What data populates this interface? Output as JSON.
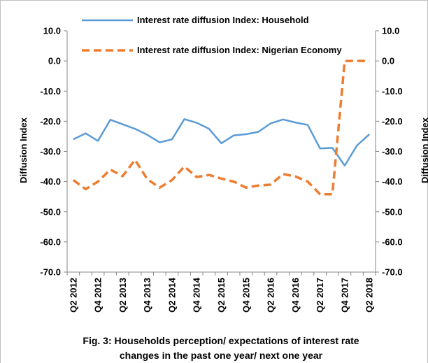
{
  "chart_data": {
    "type": "line",
    "categories": [
      "Q2 2012",
      null,
      "Q4 2012",
      null,
      "Q2 2013",
      null,
      "Q4 2013",
      null,
      "Q2 2014",
      null,
      "Q4 2014",
      null,
      "Q2 2015",
      null,
      "Q4 2015",
      null,
      "Q2 2016",
      null,
      "Q4 2016",
      null,
      "Q2 2017",
      null,
      "Q4 2017",
      null,
      "Q2 2018"
    ],
    "series": [
      {
        "name": "Interest rate diffusion Index: Household",
        "color": "#5b9bd5",
        "dashed": false,
        "values": [
          -26,
          -24,
          -26.5,
          -19.5,
          -21,
          -22.5,
          -24.5,
          -27,
          -26,
          -19.3,
          -20.5,
          -22.5,
          -27.3,
          -24.7,
          -24.3,
          -23.5,
          -20.7,
          -19.4,
          -20.4,
          -21.2,
          -29,
          -28.8,
          -34.7,
          -28,
          -24.3
        ]
      },
      {
        "name": "Interest rate diffusion Index: Nigerian Economy",
        "color": "#ed7d31",
        "dashed": true,
        "values": [
          -39.5,
          -42.5,
          -40,
          -36,
          -38.2,
          -32.8,
          -39.2,
          -42,
          -39.5,
          -35,
          -38.5,
          -37.8,
          -39,
          -40,
          -42,
          -41.3,
          -41,
          -37.5,
          -38.3,
          -40,
          -44.2,
          -44.2,
          0,
          0,
          0
        ]
      }
    ],
    "ylabel": "Diffusion Index",
    "y2label": "Diffusion Index",
    "ylim": [
      -70,
      10
    ],
    "yticks": [
      {
        "value": 10,
        "label": "10.0"
      },
      {
        "value": 0,
        "label": "0.0"
      },
      {
        "value": -10,
        "label": "-10.0"
      },
      {
        "value": -20,
        "label": "-20.0"
      },
      {
        "value": -30,
        "label": "-30.0"
      },
      {
        "value": -40,
        "label": "-40.0"
      },
      {
        "value": -50,
        "label": "-50.0"
      },
      {
        "value": -60,
        "label": "-60.0"
      },
      {
        "value": -70,
        "label": "-70.0"
      }
    ],
    "y2lim": [
      -70,
      10
    ],
    "y2ticks": [
      {
        "value": 10,
        "label": "10.0"
      },
      {
        "value": 0,
        "label": "0.0"
      },
      {
        "value": -10,
        "label": "-10.0"
      },
      {
        "value": -20,
        "label": "-20.0"
      },
      {
        "value": -30,
        "label": "-30.0"
      },
      {
        "value": -40,
        "label": "-40.0"
      },
      {
        "value": -50,
        "label": "-50.0"
      },
      {
        "value": -60,
        "label": "-60.0"
      },
      {
        "value": -70,
        "label": "-70.0"
      }
    ],
    "grid": false,
    "legend": "top",
    "caption": [
      "Fig. 3: Households  perception/ expectations of interest rate",
      "changes in the past one year/ next one year"
    ]
  }
}
